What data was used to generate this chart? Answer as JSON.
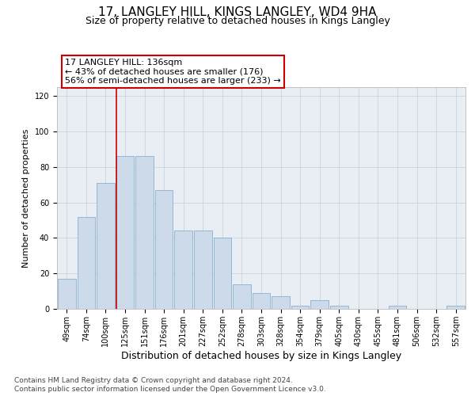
{
  "title": "17, LANGLEY HILL, KINGS LANGLEY, WD4 9HA",
  "subtitle": "Size of property relative to detached houses in Kings Langley",
  "xlabel": "Distribution of detached houses by size in Kings Langley",
  "ylabel": "Number of detached properties",
  "categories": [
    "49sqm",
    "74sqm",
    "100sqm",
    "125sqm",
    "151sqm",
    "176sqm",
    "201sqm",
    "227sqm",
    "252sqm",
    "278sqm",
    "303sqm",
    "328sqm",
    "354sqm",
    "379sqm",
    "405sqm",
    "430sqm",
    "455sqm",
    "481sqm",
    "506sqm",
    "532sqm",
    "557sqm"
  ],
  "values": [
    17,
    52,
    71,
    86,
    86,
    67,
    44,
    44,
    40,
    14,
    9,
    7,
    2,
    5,
    2,
    0,
    0,
    2,
    0,
    0,
    2
  ],
  "bar_color": "#ccdaea",
  "bar_edge_color": "#8ab0cc",
  "bar_edge_width": 0.6,
  "grid_color": "#c8d4de",
  "background_color": "#e8eef4",
  "annotation_box_text": "17 LANGLEY HILL: 136sqm\n← 43% of detached houses are smaller (176)\n56% of semi-detached houses are larger (233) →",
  "annotation_box_color": "#ffffff",
  "annotation_box_edge_color": "#cc0000",
  "ylim": [
    0,
    125
  ],
  "yticks": [
    0,
    20,
    40,
    60,
    80,
    100,
    120
  ],
  "footer_line1": "Contains HM Land Registry data © Crown copyright and database right 2024.",
  "footer_line2": "Contains public sector information licensed under the Open Government Licence v3.0.",
  "title_fontsize": 11,
  "subtitle_fontsize": 9,
  "xlabel_fontsize": 9,
  "ylabel_fontsize": 8,
  "tick_fontsize": 7,
  "annotation_fontsize": 8,
  "footer_fontsize": 6.5
}
